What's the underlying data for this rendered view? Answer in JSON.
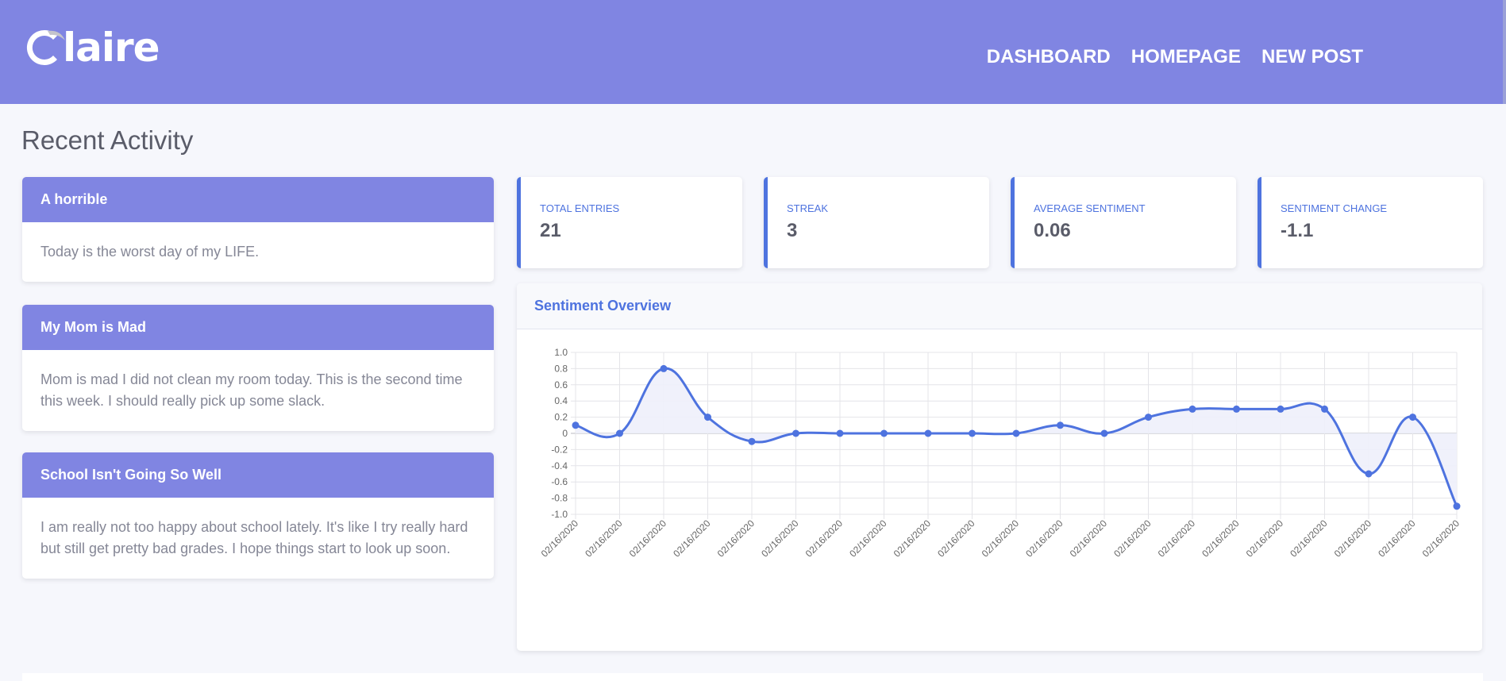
{
  "brand": {
    "name": "laire",
    "logo_icon": "crescent-c-icon"
  },
  "nav": {
    "items": [
      {
        "label": "DASHBOARD"
      },
      {
        "label": "HOMEPAGE"
      },
      {
        "label": "NEW POST"
      }
    ]
  },
  "page": {
    "title": "Recent Activity"
  },
  "posts": [
    {
      "title": "A horrible",
      "body": "Today is the worst day of my LIFE."
    },
    {
      "title": "My Mom is Mad",
      "body": "Mom is mad I did not clean my room today. This is the second time this week. I should really pick up some slack."
    },
    {
      "title": "School Isn't Going So Well",
      "body": "I am really not too happy about school lately. It's like I try really hard but still get pretty bad grades. I hope things start to look up soon."
    }
  ],
  "stats": [
    {
      "label": "TOTAL ENTRIES",
      "value": "21"
    },
    {
      "label": "STREAK",
      "value": "3"
    },
    {
      "label": "AVERAGE SENTIMENT",
      "value": "0.06"
    },
    {
      "label": "SENTIMENT CHANGE",
      "value": "-1.1"
    }
  ],
  "chart": {
    "title": "Sentiment Overview"
  },
  "chart_data": {
    "type": "line",
    "title": "",
    "xlabel": "",
    "ylabel": "",
    "ylim": [
      -1.0,
      1.0
    ],
    "yticks": [
      "1.0",
      "0.8",
      "0.6",
      "0.4",
      "0.2",
      "0",
      "-0.2",
      "-0.4",
      "-0.6",
      "-0.8",
      "-1.0"
    ],
    "ytick_values": [
      1.0,
      0.8,
      0.6,
      0.4,
      0.2,
      0,
      -0.2,
      -0.4,
      -0.6,
      -0.8,
      -1.0
    ],
    "grid": true,
    "x": [
      "02/16/2020",
      "02/16/2020",
      "02/16/2020",
      "02/16/2020",
      "02/16/2020",
      "02/16/2020",
      "02/16/2020",
      "02/16/2020",
      "02/16/2020",
      "02/16/2020",
      "02/16/2020",
      "02/16/2020",
      "02/16/2020",
      "02/16/2020",
      "02/16/2020",
      "02/16/2020",
      "02/16/2020",
      "02/16/2020",
      "02/16/2020",
      "02/16/2020",
      "02/16/2020"
    ],
    "series": [
      {
        "values": [
          0.1,
          0,
          0.8,
          0.2,
          -0.1,
          0,
          0,
          0,
          0,
          0,
          0,
          0.1,
          0,
          0.2,
          0.3,
          0.3,
          0.3,
          0.3,
          -0.5,
          0.2,
          -0.9
        ]
      }
    ],
    "line_color": "#4e73df",
    "fill_color": "#eef0fb"
  }
}
